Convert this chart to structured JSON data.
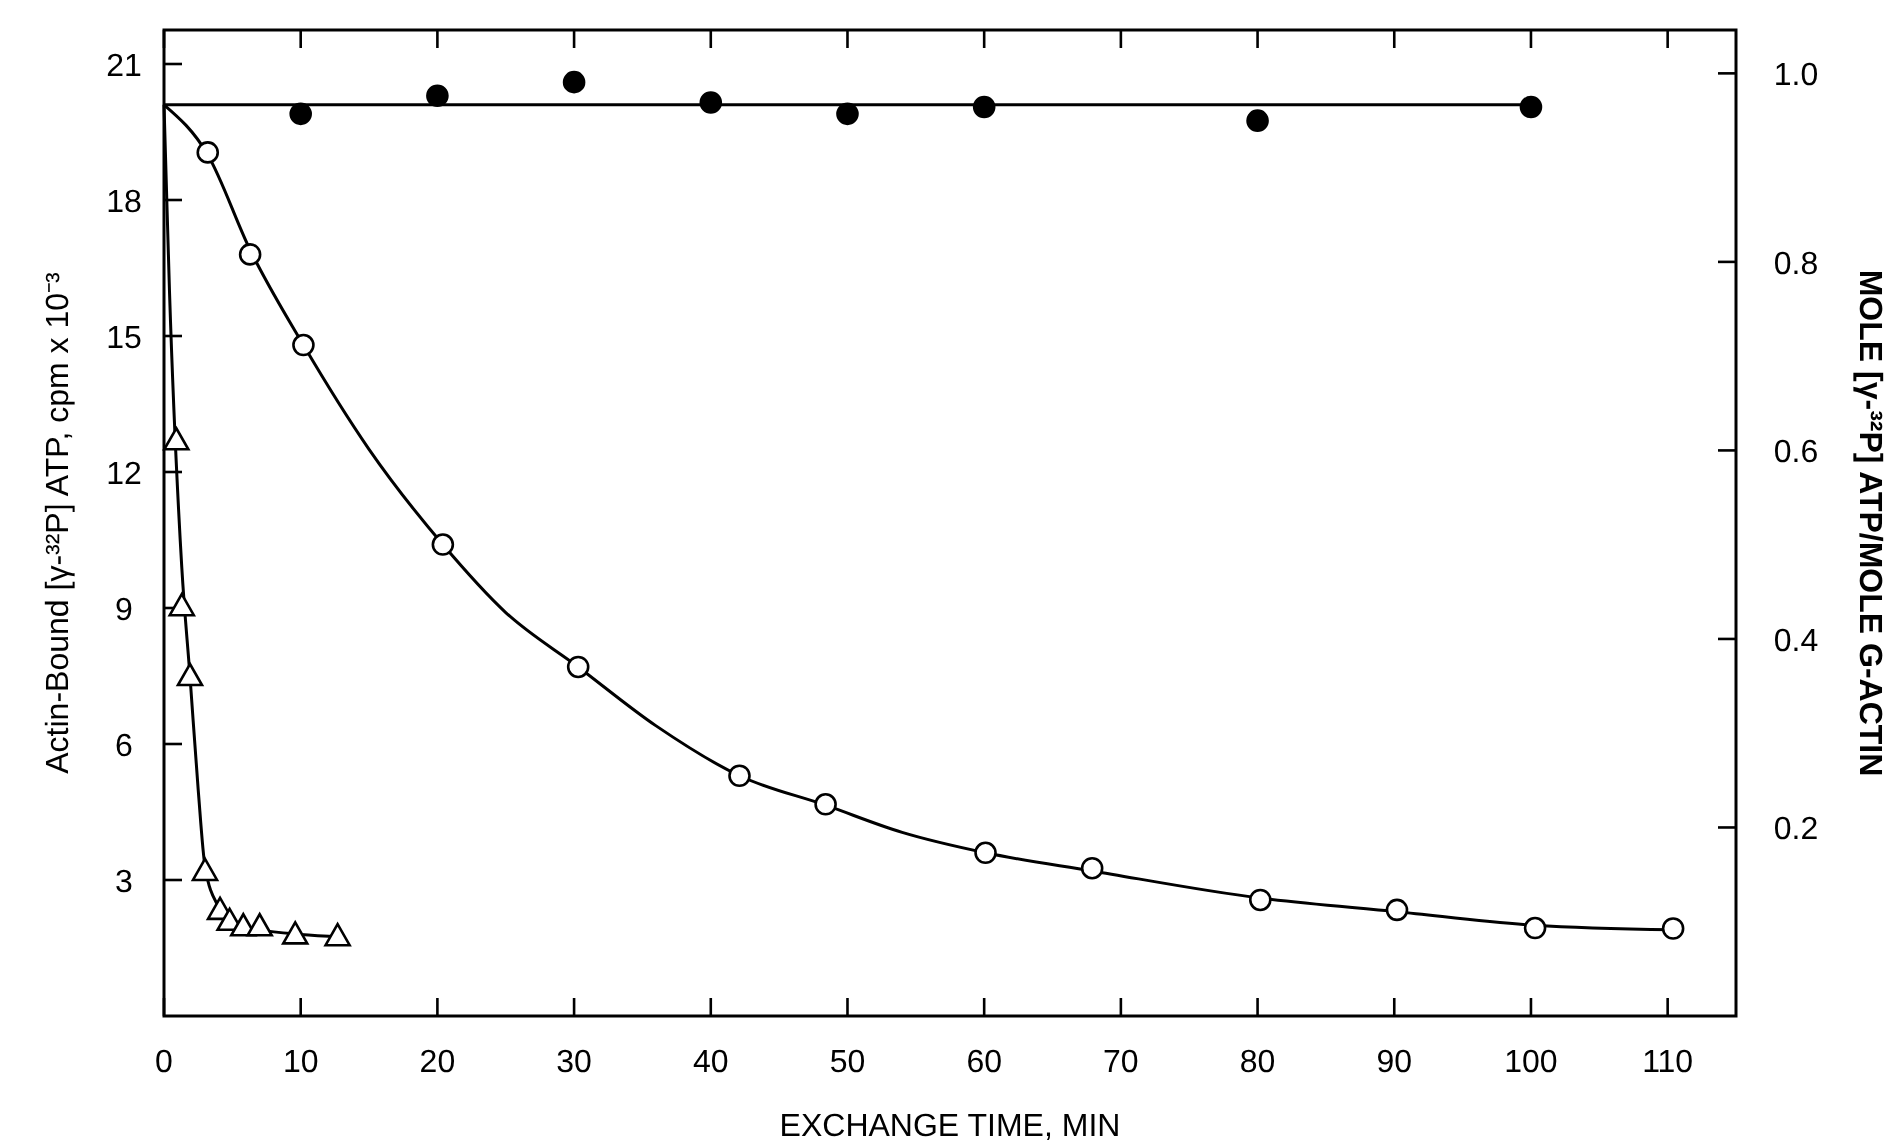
{
  "chart_data": {
    "type": "scatter",
    "xlabel": "EXCHANGE TIME, MIN",
    "ylabel": "Actin-Bound [γ-³²P] ATP, cpm x 10⁻³",
    "y2label": "MOLE [γ-³²P] ATP/MOLE G-ACTIN",
    "xlim": [
      0,
      115
    ],
    "xticks": [
      0,
      10,
      20,
      30,
      40,
      50,
      60,
      70,
      80,
      90,
      100,
      110
    ],
    "ylim": [
      0,
      21.75
    ],
    "yticks": [
      3,
      6,
      9,
      12,
      15,
      18,
      21
    ],
    "y2lim": [
      0,
      1.046
    ],
    "y2ticks": [
      0.2,
      0.4,
      0.6,
      0.8,
      {
        "value": 1.0,
        "label": "1.0"
      }
    ],
    "grid": false,
    "series": [
      {
        "marker": "circle",
        "color": "#000000",
        "x": [
          10,
          20,
          30,
          40,
          50,
          60,
          80,
          100
        ],
        "values": [
          19.9,
          20.3,
          20.6,
          20.15,
          19.9,
          20.05,
          19.75,
          20.05
        ]
      },
      {
        "marker": "circle",
        "color": "#ffffff",
        "x": [
          3.2,
          6.3,
          10.2,
          20.4,
          30.3,
          42.1,
          48.4,
          60.1,
          67.9,
          80.2,
          90.2,
          100.3,
          110.4
        ],
        "values": [
          19.05,
          16.8,
          14.8,
          10.4,
          7.7,
          5.3,
          4.67,
          3.6,
          3.26,
          2.56,
          2.34,
          1.94,
          1.93
        ]
      },
      {
        "marker": "triangle",
        "color": "#ffffff",
        "x": [
          0.9,
          1.3,
          1.9,
          3.0,
          4.1,
          4.8,
          5.8,
          7.0,
          9.6,
          12.7
        ],
        "values": [
          12.7,
          9.04,
          7.5,
          3.2,
          2.34,
          2.1,
          1.98,
          1.98,
          1.8,
          1.76
        ]
      },
      {
        "type": "line",
        "line_style": "solid",
        "color": "#000000",
        "x": [
          0,
          100
        ],
        "values": [
          20.1,
          20.1
        ]
      },
      {
        "type": "line",
        "line_style": "solid",
        "color": "#000000",
        "x": [
          0,
          3.2,
          6.3,
          10.2,
          15,
          20.4,
          25,
          30.3,
          36,
          42.1,
          48.4,
          54,
          60.1,
          67.9,
          80.2,
          90.2,
          100.3,
          110.4
        ],
        "values": [
          20.1,
          19.0,
          16.9,
          14.8,
          12.5,
          10.4,
          8.9,
          7.7,
          6.4,
          5.3,
          4.65,
          4.05,
          3.6,
          3.2,
          2.6,
          2.3,
          2.0,
          1.9
        ]
      },
      {
        "type": "line",
        "line_style": "solid",
        "color": "#000000",
        "x": [
          0,
          0.4,
          1.3,
          1.9,
          2.5,
          3.0,
          4,
          5,
          7,
          10,
          13
        ],
        "values": [
          20.1,
          16.0,
          9.9,
          7.5,
          5.0,
          3.3,
          2.4,
          2.05,
          1.9,
          1.8,
          1.75
        ]
      }
    ]
  }
}
